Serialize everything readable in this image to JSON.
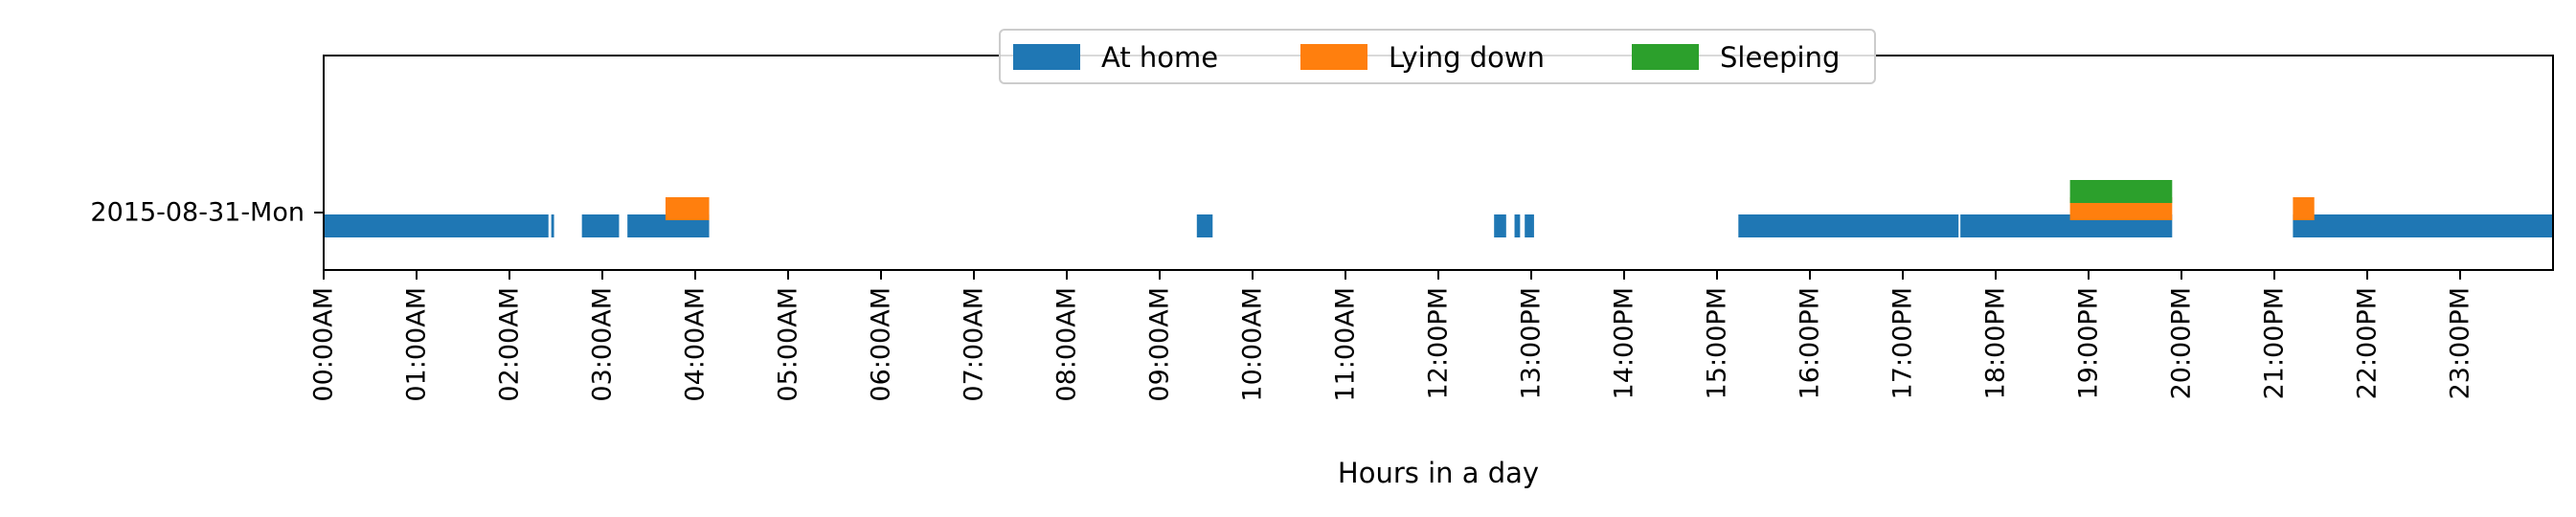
{
  "chart_data": {
    "type": "timeline",
    "title": "",
    "xlabel": "Hours in a day",
    "ylabel": "",
    "xlim": [
      0,
      24
    ],
    "x_unit": "hours",
    "y_categories": [
      "2015-08-31-Mon"
    ],
    "x_ticks": [
      {
        "value": 0,
        "label": "00:00AM"
      },
      {
        "value": 1,
        "label": "01:00AM"
      },
      {
        "value": 2,
        "label": "02:00AM"
      },
      {
        "value": 3,
        "label": "03:00AM"
      },
      {
        "value": 4,
        "label": "04:00AM"
      },
      {
        "value": 5,
        "label": "05:00AM"
      },
      {
        "value": 6,
        "label": "06:00AM"
      },
      {
        "value": 7,
        "label": "07:00AM"
      },
      {
        "value": 8,
        "label": "08:00AM"
      },
      {
        "value": 9,
        "label": "09:00AM"
      },
      {
        "value": 10,
        "label": "10:00AM"
      },
      {
        "value": 11,
        "label": "11:00AM"
      },
      {
        "value": 12,
        "label": "12:00PM"
      },
      {
        "value": 13,
        "label": "13:00PM"
      },
      {
        "value": 14,
        "label": "14:00PM"
      },
      {
        "value": 15,
        "label": "15:00PM"
      },
      {
        "value": 16,
        "label": "16:00PM"
      },
      {
        "value": 17,
        "label": "17:00PM"
      },
      {
        "value": 18,
        "label": "18:00PM"
      },
      {
        "value": 19,
        "label": "19:00PM"
      },
      {
        "value": 20,
        "label": "20:00PM"
      },
      {
        "value": 21,
        "label": "21:00PM"
      },
      {
        "value": 22,
        "label": "22:00PM"
      },
      {
        "value": 23,
        "label": "23:00PM"
      }
    ],
    "legend": {
      "position": "upper center",
      "entries": [
        "At home",
        "Lying down",
        "Sleeping"
      ]
    },
    "grid": false,
    "series": [
      {
        "name": "At home",
        "color": "#1f77b4",
        "lane": 0,
        "intervals": [
          [
            0.0,
            2.42
          ],
          [
            2.45,
            2.48
          ],
          [
            2.78,
            3.18
          ],
          [
            3.27,
            4.15
          ],
          [
            9.4,
            9.57
          ],
          [
            12.6,
            12.73
          ],
          [
            12.82,
            12.88
          ],
          [
            12.93,
            13.03
          ],
          [
            15.23,
            17.6
          ],
          [
            17.62,
            19.9
          ],
          [
            21.2,
            24.0
          ]
        ]
      },
      {
        "name": "Lying down",
        "color": "#ff7f0e",
        "lane": 1,
        "intervals": [
          [
            3.68,
            4.15
          ],
          [
            18.8,
            19.9
          ],
          [
            21.2,
            21.43
          ]
        ]
      },
      {
        "name": "Sleeping",
        "color": "#2ca02c",
        "lane": 2,
        "intervals": [
          [
            18.8,
            19.9
          ]
        ]
      }
    ]
  }
}
